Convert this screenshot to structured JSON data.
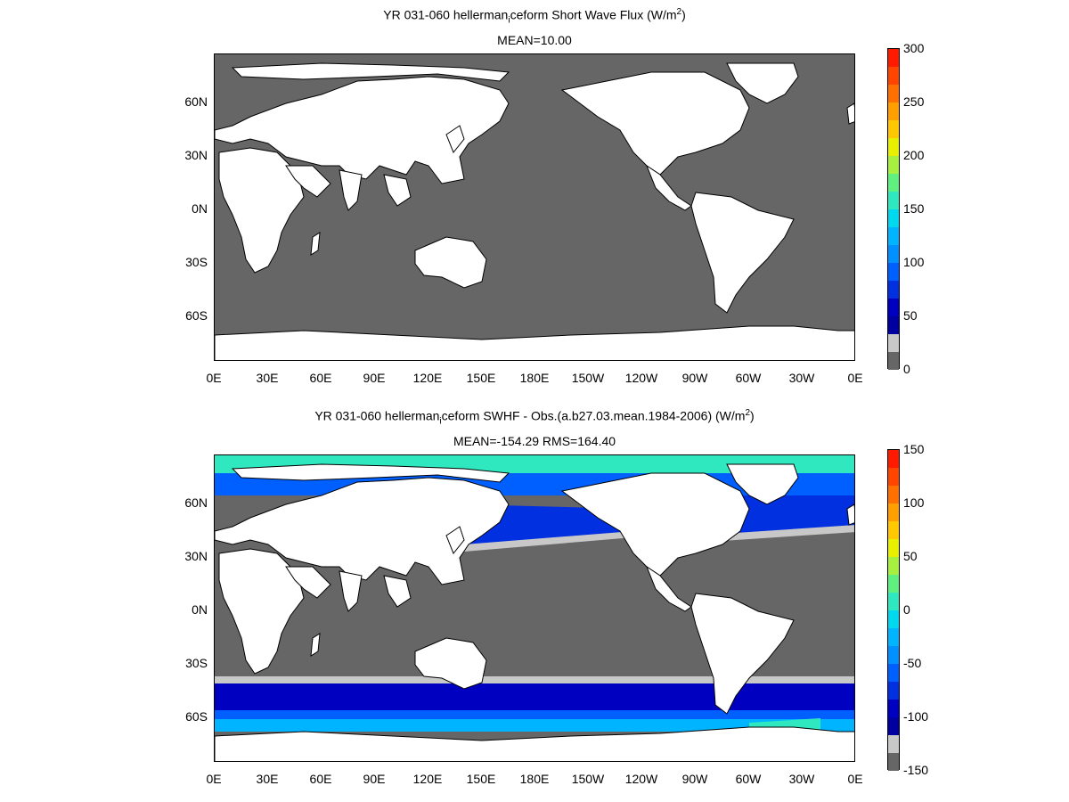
{
  "panels": [
    {
      "title_main": "YR 031-060 hellerman",
      "title_sub": "i",
      "title_rest": "ceform  Short Wave Flux (W/m",
      "title_sup": "2",
      "title_end": ")",
      "stats": "MEAN=10.00",
      "colorbar_labels": [
        "300",
        "250",
        "200",
        "150",
        "100",
        "50",
        "0"
      ]
    },
    {
      "title_main": "YR 031-060 hellerman",
      "title_sub": "i",
      "title_rest": "ceform SWHF - Obs.(a.b27.03.mean.1984-2006) (W/m",
      "title_sup": "2",
      "title_end": ")",
      "stats": "MEAN=-154.29 RMS=164.40",
      "colorbar_labels": [
        "150",
        "100",
        "50",
        "0",
        "-50",
        "-100",
        "-150"
      ]
    }
  ],
  "lat_labels": [
    "60N",
    "30N",
    "0N",
    "30S",
    "60S"
  ],
  "lon_labels": [
    "0E",
    "30E",
    "60E",
    "90E",
    "120E",
    "150E",
    "180E",
    "150W",
    "120W",
    "90W",
    "60W",
    "30W",
    "0E"
  ],
  "colors": {
    "ocean_gray": "#666666",
    "land": "#ffffff",
    "light_gray": "#c8c8c8",
    "colorbar": [
      "#ff1a00",
      "#ff4500",
      "#ff7000",
      "#ffa000",
      "#ffc800",
      "#e8f000",
      "#a8f040",
      "#60f080",
      "#30e8c0",
      "#00d8f0",
      "#00b4ff",
      "#0090ff",
      "#0060ff",
      "#0030e0",
      "#0000c0",
      "#0000a0",
      "#c8c8c8",
      "#666666"
    ]
  }
}
